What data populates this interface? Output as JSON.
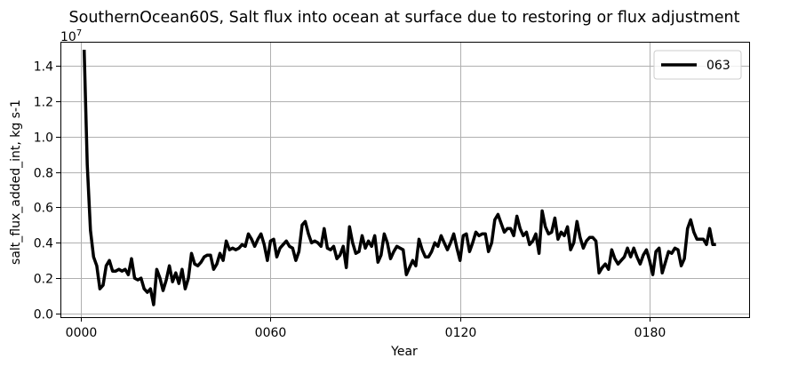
{
  "chart_data": {
    "type": "line",
    "title": "SouthernOcean60S, Salt flux into ocean at surface due to restoring or flux adjustment",
    "xlabel": "Year",
    "ylabel": "salt_flux_added_int, kg s-1",
    "y_offset_label": "1e7",
    "x_ticks": [
      {
        "value": 0,
        "label": "0000"
      },
      {
        "value": 60,
        "label": "0060"
      },
      {
        "value": 120,
        "label": "0120"
      },
      {
        "value": 180,
        "label": "0180"
      }
    ],
    "y_ticks": [
      {
        "value": 0.0,
        "label": "0.0"
      },
      {
        "value": 0.2,
        "label": "0.2"
      },
      {
        "value": 0.4,
        "label": "0.4"
      },
      {
        "value": 0.6,
        "label": "0.6"
      },
      {
        "value": 0.8,
        "label": "0.8"
      },
      {
        "value": 1.0,
        "label": "1.0"
      },
      {
        "value": 1.2,
        "label": "1.2"
      },
      {
        "value": 1.4,
        "label": "1.4"
      }
    ],
    "xlim": [
      -6.5,
      211.5
    ],
    "ylim": [
      -0.02,
      1.535
    ],
    "y_scale_note": "values in units of 1e7 kg s-1",
    "grid": true,
    "legend_position": "upper right",
    "series": [
      {
        "name": "063",
        "color": "#000000",
        "x_start": 1,
        "x_step": 1,
        "values": [
          1.49,
          0.84,
          0.47,
          0.32,
          0.27,
          0.14,
          0.16,
          0.27,
          0.3,
          0.24,
          0.24,
          0.25,
          0.24,
          0.25,
          0.22,
          0.31,
          0.2,
          0.19,
          0.2,
          0.14,
          0.12,
          0.14,
          0.05,
          0.25,
          0.2,
          0.13,
          0.19,
          0.27,
          0.18,
          0.23,
          0.17,
          0.25,
          0.14,
          0.2,
          0.34,
          0.28,
          0.27,
          0.29,
          0.32,
          0.33,
          0.33,
          0.25,
          0.28,
          0.34,
          0.3,
          0.41,
          0.36,
          0.37,
          0.36,
          0.37,
          0.39,
          0.38,
          0.45,
          0.42,
          0.38,
          0.42,
          0.45,
          0.39,
          0.3,
          0.41,
          0.42,
          0.32,
          0.37,
          0.39,
          0.41,
          0.38,
          0.37,
          0.3,
          0.35,
          0.5,
          0.52,
          0.45,
          0.4,
          0.41,
          0.4,
          0.38,
          0.48,
          0.37,
          0.36,
          0.38,
          0.31,
          0.33,
          0.38,
          0.26,
          0.49,
          0.4,
          0.34,
          0.35,
          0.44,
          0.37,
          0.41,
          0.38,
          0.44,
          0.29,
          0.33,
          0.45,
          0.4,
          0.31,
          0.35,
          0.38,
          0.37,
          0.36,
          0.22,
          0.26,
          0.3,
          0.27,
          0.42,
          0.36,
          0.32,
          0.32,
          0.35,
          0.4,
          0.38,
          0.44,
          0.4,
          0.36,
          0.4,
          0.45,
          0.37,
          0.3,
          0.44,
          0.45,
          0.35,
          0.4,
          0.46,
          0.44,
          0.45,
          0.45,
          0.35,
          0.4,
          0.53,
          0.56,
          0.51,
          0.46,
          0.48,
          0.48,
          0.44,
          0.55,
          0.48,
          0.44,
          0.46,
          0.39,
          0.41,
          0.45,
          0.34,
          0.58,
          0.49,
          0.45,
          0.46,
          0.54,
          0.42,
          0.46,
          0.44,
          0.49,
          0.36,
          0.4,
          0.52,
          0.43,
          0.37,
          0.41,
          0.43,
          0.43,
          0.41,
          0.23,
          0.26,
          0.28,
          0.25,
          0.36,
          0.31,
          0.28,
          0.3,
          0.32,
          0.37,
          0.32,
          0.37,
          0.32,
          0.28,
          0.33,
          0.36,
          0.3,
          0.22,
          0.35,
          0.37,
          0.23,
          0.29,
          0.35,
          0.34,
          0.37,
          0.36,
          0.27,
          0.31,
          0.48,
          0.53,
          0.46,
          0.42,
          0.42,
          0.42,
          0.39,
          0.48,
          0.39,
          0.39
        ]
      }
    ]
  }
}
